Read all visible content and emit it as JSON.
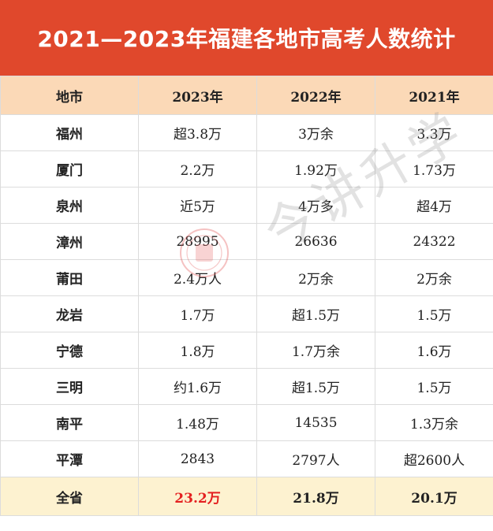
{
  "title": "2021—2023年福建各地市高考人数统计",
  "headers": [
    "地市",
    "2023年",
    "2022年",
    "2021年"
  ],
  "rows": [
    {
      "city": "福州",
      "y2023": "超3.8万",
      "y2022": "3万余",
      "y2021": "3.3万"
    },
    {
      "city": "厦门",
      "y2023": "2.2万",
      "y2022": "1.92万",
      "y2021": "1.73万"
    },
    {
      "city": "泉州",
      "y2023": "近5万",
      "y2022": "4万多",
      "y2021": "超4万"
    },
    {
      "city": "漳州",
      "y2023": "28995",
      "y2022": "26636",
      "y2021": "24322"
    },
    {
      "city": "莆田",
      "y2023": "2.4万人",
      "y2022": "2万余",
      "y2021": "2万余"
    },
    {
      "city": "龙岩",
      "y2023": "1.7万",
      "y2022": "超1.5万",
      "y2021": "1.5万"
    },
    {
      "city": "宁德",
      "y2023": "1.8万",
      "y2022": "1.7万余",
      "y2021": "1.6万"
    },
    {
      "city": "三明",
      "y2023": "约1.6万",
      "y2022": "超1.5万",
      "y2021": "1.5万"
    },
    {
      "city": "南平",
      "y2023": "1.48万",
      "y2022": "14535",
      "y2021": "1.3万余"
    },
    {
      "city": "平潭",
      "y2023": "2843",
      "y2022": "2797人",
      "y2021": "超2600人"
    }
  ],
  "total": {
    "label": "全省",
    "y2023": "23.2万",
    "y2022": "21.8万",
    "y2021": "20.1万"
  },
  "watermark": "今讲升学",
  "colors": {
    "title_bg": "#e0482c",
    "header_bg": "#fbd9b7",
    "total_bg": "#fdf2d0",
    "highlight": "#e42020"
  }
}
